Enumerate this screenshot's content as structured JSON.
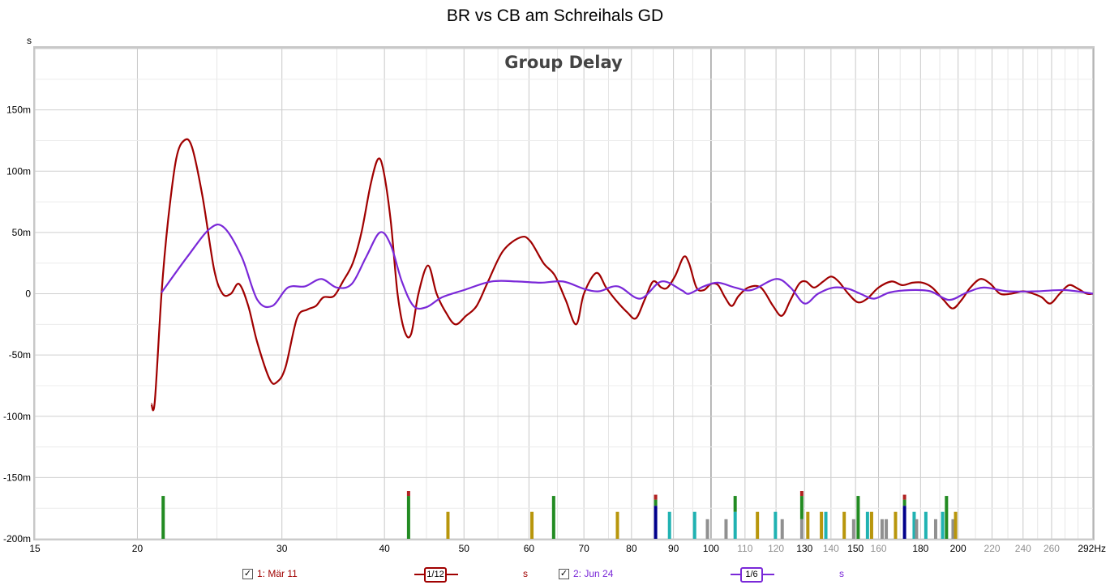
{
  "title": "BR vs CB am Schreihals GD",
  "legend": {
    "series1": {
      "label": "1: Mär 11",
      "checked": "✓",
      "smoothing": "1/12",
      "unit": "s",
      "color": "#a00000"
    },
    "series2": {
      "label": "2: Jun 24",
      "checked": "✓",
      "smoothing": "1/6",
      "unit": "s",
      "color": "#7a28d8"
    }
  },
  "chart_data": {
    "type": "line",
    "title": "Group Delay",
    "ylabel": "s",
    "xscale": "log",
    "xlim": [
      15,
      292
    ],
    "ylim": [
      -0.2,
      0.2
    ],
    "grid": true,
    "x_ticks": [
      15,
      20,
      30,
      40,
      50,
      60,
      70,
      80,
      90,
      100,
      110,
      120,
      130,
      140,
      150,
      160,
      180,
      200,
      220,
      240,
      260,
      292
    ],
    "x_tick_labels": [
      "15",
      "20",
      "30",
      "40",
      "50",
      "60",
      "70",
      "80",
      "90",
      "100",
      "110",
      "120",
      "130",
      "140",
      "150",
      "160",
      "180",
      "200",
      "220",
      "240",
      "260",
      "292Hz"
    ],
    "y_ticks": [
      -0.2,
      -0.15,
      -0.1,
      -0.05,
      0,
      0.05,
      0.1,
      0.15
    ],
    "y_tick_labels": [
      "-200m",
      "-150m",
      "-100m",
      "-50m",
      "0",
      "50m",
      "100m",
      "150m"
    ],
    "series": [
      {
        "name": "1: Mär 11",
        "color": "#a00000",
        "points": [
          [
            20.8,
            -0.09
          ],
          [
            21.0,
            -0.088
          ],
          [
            21.4,
            0.0
          ],
          [
            21.8,
            0.06
          ],
          [
            22.3,
            0.11
          ],
          [
            22.8,
            0.125
          ],
          [
            23.3,
            0.12
          ],
          [
            24.0,
            0.08
          ],
          [
            24.8,
            0.02
          ],
          [
            25.4,
            0.0
          ],
          [
            26.0,
            0.0
          ],
          [
            26.6,
            0.008
          ],
          [
            27.3,
            -0.01
          ],
          [
            28.0,
            -0.04
          ],
          [
            29.0,
            -0.07
          ],
          [
            29.6,
            -0.072
          ],
          [
            30.3,
            -0.06
          ],
          [
            31.3,
            -0.02
          ],
          [
            32.2,
            -0.013
          ],
          [
            33.0,
            -0.01
          ],
          [
            33.7,
            -0.003
          ],
          [
            34.7,
            -0.002
          ],
          [
            35.6,
            0.01
          ],
          [
            36.6,
            0.025
          ],
          [
            37.5,
            0.05
          ],
          [
            38.5,
            0.09
          ],
          [
            39.3,
            0.11
          ],
          [
            39.9,
            0.1
          ],
          [
            40.7,
            0.06
          ],
          [
            41.5,
            0.0
          ],
          [
            42.3,
            -0.03
          ],
          [
            43.1,
            -0.033
          ],
          [
            44.0,
            0.0
          ],
          [
            45.2,
            0.023
          ],
          [
            46.3,
            0.0
          ],
          [
            47.5,
            -0.015
          ],
          [
            48.8,
            -0.025
          ],
          [
            50.3,
            -0.018
          ],
          [
            51.8,
            -0.01
          ],
          [
            53.5,
            0.01
          ],
          [
            55.8,
            0.035
          ],
          [
            58.6,
            0.046
          ],
          [
            60.2,
            0.043
          ],
          [
            62.5,
            0.025
          ],
          [
            64.5,
            0.015
          ],
          [
            66.5,
            -0.005
          ],
          [
            68.5,
            -0.025
          ],
          [
            70.0,
            0.0
          ],
          [
            72.5,
            0.017
          ],
          [
            74.5,
            0.005
          ],
          [
            76.5,
            -0.005
          ],
          [
            79.0,
            -0.015
          ],
          [
            81.0,
            -0.02
          ],
          [
            83.0,
            -0.005
          ],
          [
            85.0,
            0.01
          ],
          [
            87.0,
            0.005
          ],
          [
            88.5,
            0.005
          ],
          [
            90.5,
            0.015
          ],
          [
            92.6,
            0.03
          ],
          [
            94.0,
            0.025
          ],
          [
            96.0,
            0.005
          ],
          [
            98.0,
            0.003
          ],
          [
            100.0,
            0.008
          ],
          [
            102.0,
            0.007
          ],
          [
            104.0,
            -0.003
          ],
          [
            106.0,
            -0.01
          ],
          [
            108.0,
            -0.002
          ],
          [
            111.0,
            0.005
          ],
          [
            115.0,
            0.005
          ],
          [
            119.0,
            -0.01
          ],
          [
            122.0,
            -0.018
          ],
          [
            125.0,
            -0.005
          ],
          [
            128.0,
            0.008
          ],
          [
            130.5,
            0.01
          ],
          [
            133.5,
            0.005
          ],
          [
            137.0,
            0.01
          ],
          [
            140.0,
            0.014
          ],
          [
            143.0,
            0.01
          ],
          [
            147.0,
            0.0
          ],
          [
            151.0,
            -0.007
          ],
          [
            155.0,
            -0.004
          ],
          [
            160.0,
            0.005
          ],
          [
            166.0,
            0.01
          ],
          [
            171.0,
            0.007
          ],
          [
            176.0,
            0.009
          ],
          [
            181.0,
            0.009
          ],
          [
            186.0,
            0.005
          ],
          [
            192.0,
            -0.005
          ],
          [
            197.0,
            -0.012
          ],
          [
            202.0,
            -0.005
          ],
          [
            207.0,
            0.005
          ],
          [
            213.0,
            0.012
          ],
          [
            219.0,
            0.008
          ],
          [
            225.0,
            0.0
          ],
          [
            232.0,
            0.0
          ],
          [
            240.0,
            0.002
          ],
          [
            247.0,
            0.0
          ],
          [
            253.0,
            -0.003
          ],
          [
            259.0,
            -0.008
          ],
          [
            266.0,
            0.0
          ],
          [
            273.0,
            0.007
          ],
          [
            280.0,
            0.004
          ],
          [
            287.0,
            0.0
          ],
          [
            292.0,
            0.0
          ]
        ]
      },
      {
        "name": "2: Jun 24",
        "color": "#7a28d8",
        "points": [
          [
            21.4,
            0.001
          ],
          [
            23.0,
            0.03
          ],
          [
            24.5,
            0.053
          ],
          [
            25.5,
            0.054
          ],
          [
            26.8,
            0.03
          ],
          [
            28.0,
            -0.005
          ],
          [
            29.2,
            -0.01
          ],
          [
            30.5,
            0.005
          ],
          [
            32.0,
            0.006
          ],
          [
            33.5,
            0.012
          ],
          [
            35.0,
            0.005
          ],
          [
            36.5,
            0.008
          ],
          [
            38.0,
            0.03
          ],
          [
            39.5,
            0.05
          ],
          [
            40.7,
            0.04
          ],
          [
            42.0,
            0.01
          ],
          [
            43.4,
            -0.01
          ],
          [
            45.0,
            -0.011
          ],
          [
            47.0,
            -0.003
          ],
          [
            50.0,
            0.003
          ],
          [
            54.0,
            0.01
          ],
          [
            58.0,
            0.01
          ],
          [
            62.0,
            0.009
          ],
          [
            66.0,
            0.01
          ],
          [
            70.0,
            0.004
          ],
          [
            73.0,
            0.002
          ],
          [
            77.0,
            0.006
          ],
          [
            82.0,
            -0.004
          ],
          [
            87.0,
            0.01
          ],
          [
            92.0,
            0.003
          ],
          [
            94.0,
            0.0
          ],
          [
            98.0,
            0.006
          ],
          [
            102.0,
            0.009
          ],
          [
            107.0,
            0.005
          ],
          [
            112.0,
            0.003
          ],
          [
            120.0,
            0.012
          ],
          [
            125.0,
            0.005
          ],
          [
            130.0,
            -0.008
          ],
          [
            135.0,
            0.0
          ],
          [
            141.0,
            0.005
          ],
          [
            147.0,
            0.004
          ],
          [
            152.0,
            0.0
          ],
          [
            158.0,
            -0.004
          ],
          [
            165.0,
            0.001
          ],
          [
            175.0,
            0.003
          ],
          [
            185.0,
            0.002
          ],
          [
            195.0,
            -0.005
          ],
          [
            205.0,
            0.001
          ],
          [
            215.0,
            0.005
          ],
          [
            230.0,
            0.002
          ],
          [
            250.0,
            0.002
          ],
          [
            270.0,
            0.003
          ],
          [
            292.0,
            0.0
          ]
        ]
      }
    ],
    "resonance_markers": [
      {
        "f": 21.5,
        "parts": [
          [
            "#228b22",
            0.035
          ]
        ]
      },
      {
        "f": 42.8,
        "parts": [
          [
            "#228b22",
            0.035
          ],
          [
            "#b22222",
            0.004
          ]
        ]
      },
      {
        "f": 47.8,
        "parts": [
          [
            "#b8960c",
            0.022
          ]
        ]
      },
      {
        "f": 60.5,
        "parts": [
          [
            "#b8960c",
            0.022
          ]
        ]
      },
      {
        "f": 64.3,
        "parts": [
          [
            "#228b22",
            0.035
          ]
        ]
      },
      {
        "f": 76.9,
        "parts": [
          [
            "#b8960c",
            0.022
          ]
        ]
      },
      {
        "f": 85.6,
        "parts": [
          [
            "#00008b",
            0.027
          ],
          [
            "#228b22",
            0.005
          ],
          [
            "#b22222",
            0.004
          ]
        ]
      },
      {
        "f": 89.0,
        "parts": [
          [
            "#20b2b2",
            0.022
          ]
        ]
      },
      {
        "f": 95.5,
        "parts": [
          [
            "#20b2b2",
            0.022
          ]
        ]
      },
      {
        "f": 99.0,
        "parts": [
          [
            "#909090",
            0.016
          ]
        ]
      },
      {
        "f": 104.3,
        "parts": [
          [
            "#909090",
            0.016
          ]
        ]
      },
      {
        "f": 107.0,
        "parts": [
          [
            "#20b2b2",
            0.022
          ],
          [
            "#228b22",
            0.013
          ]
        ]
      },
      {
        "f": 113.9,
        "parts": [
          [
            "#b8960c",
            0.022
          ]
        ]
      },
      {
        "f": 119.8,
        "parts": [
          [
            "#20b2b2",
            0.022
          ]
        ]
      },
      {
        "f": 122.1,
        "parts": [
          [
            "#909090",
            0.016
          ]
        ]
      },
      {
        "f": 129.0,
        "parts": [
          [
            "#909090",
            0.016
          ],
          [
            "#228b22",
            0.019
          ],
          [
            "#b22222",
            0.004
          ]
        ]
      },
      {
        "f": 131.2,
        "parts": [
          [
            "#b8960c",
            0.022
          ]
        ]
      },
      {
        "f": 136.3,
        "parts": [
          [
            "#b8960c",
            0.022
          ]
        ]
      },
      {
        "f": 138.0,
        "parts": [
          [
            "#20b2b2",
            0.022
          ]
        ]
      },
      {
        "f": 145.3,
        "parts": [
          [
            "#b8960c",
            0.022
          ]
        ]
      },
      {
        "f": 149.2,
        "parts": [
          [
            "#909090",
            0.016
          ]
        ]
      },
      {
        "f": 151.1,
        "parts": [
          [
            "#228b22",
            0.035
          ]
        ]
      },
      {
        "f": 155.1,
        "parts": [
          [
            "#20b2b2",
            0.022
          ]
        ]
      },
      {
        "f": 156.9,
        "parts": [
          [
            "#b8960c",
            0.022
          ]
        ]
      },
      {
        "f": 161.6,
        "parts": [
          [
            "#909090",
            0.016
          ]
        ]
      },
      {
        "f": 163.5,
        "parts": [
          [
            "#909090",
            0.016
          ]
        ]
      },
      {
        "f": 167.8,
        "parts": [
          [
            "#b8960c",
            0.022
          ]
        ]
      },
      {
        "f": 172.1,
        "parts": [
          [
            "#00008b",
            0.027
          ],
          [
            "#228b22",
            0.005
          ],
          [
            "#b22222",
            0.004
          ]
        ]
      },
      {
        "f": 176.8,
        "parts": [
          [
            "#20b2b2",
            0.022
          ]
        ]
      },
      {
        "f": 178.0,
        "parts": [
          [
            "#909090",
            0.016
          ]
        ]
      },
      {
        "f": 182.7,
        "parts": [
          [
            "#20b2b2",
            0.022
          ]
        ]
      },
      {
        "f": 187.8,
        "parts": [
          [
            "#909090",
            0.016
          ]
        ]
      },
      {
        "f": 191.5,
        "parts": [
          [
            "#20b2b2",
            0.022
          ]
        ]
      },
      {
        "f": 193.6,
        "parts": [
          [
            "#228b22",
            0.035
          ]
        ]
      },
      {
        "f": 197.2,
        "parts": [
          [
            "#909090",
            0.016
          ]
        ]
      },
      {
        "f": 198.6,
        "parts": [
          [
            "#b8960c",
            0.022
          ]
        ]
      }
    ]
  }
}
